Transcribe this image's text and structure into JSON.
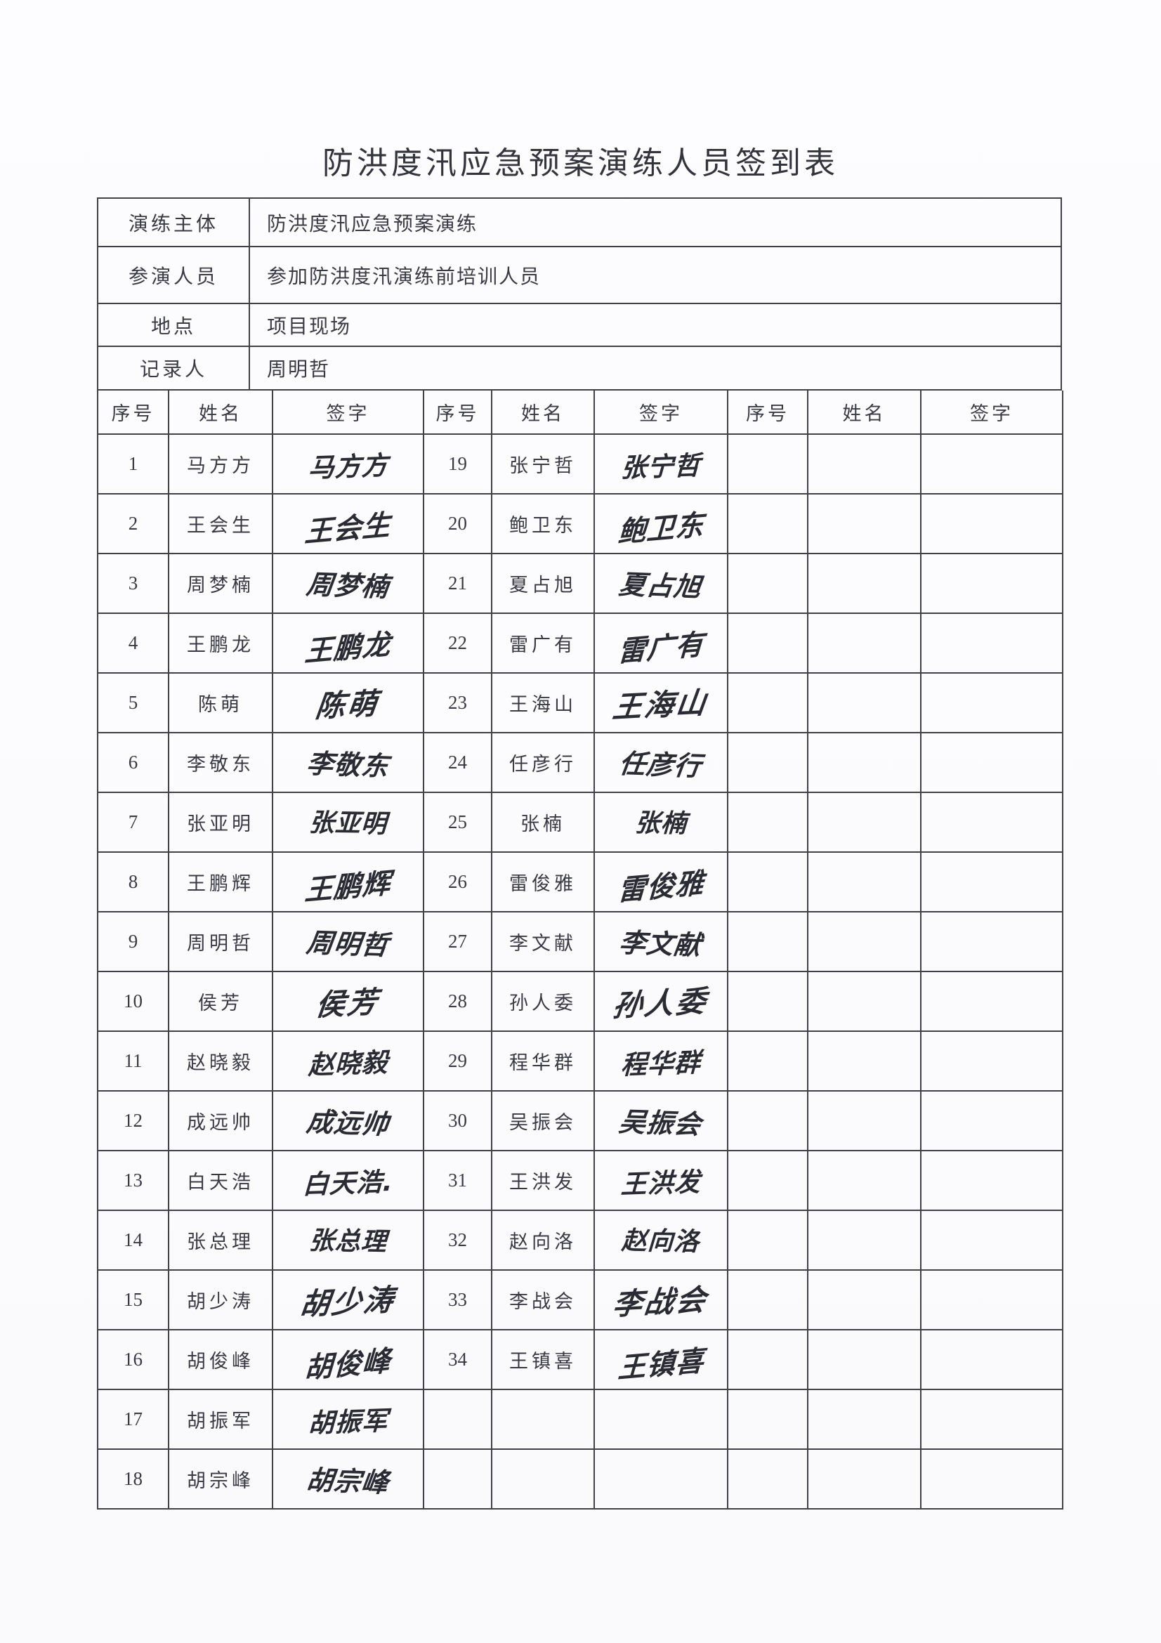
{
  "title": "防洪度汛应急预案演练人员签到表",
  "info_rows": [
    {
      "label": "演练主体",
      "value": "防洪度汛应急预案演练"
    },
    {
      "label": "参演人员",
      "value": "参加防洪度汛演练前培训人员"
    },
    {
      "label": "地点",
      "value": "项目现场"
    },
    {
      "label": "记录人",
      "value": "周明哲"
    }
  ],
  "column_headers": [
    "序号",
    "姓名",
    "签字"
  ],
  "ink_color": "#2b2b33",
  "line_color": "#404046",
  "groups": [
    {
      "rows": [
        {
          "no": "1",
          "name": "马方方",
          "signature": "马方方"
        },
        {
          "no": "2",
          "name": "王会生",
          "signature": "王会生"
        },
        {
          "no": "3",
          "name": "周梦楠",
          "signature": "周梦楠"
        },
        {
          "no": "4",
          "name": "王鹏龙",
          "signature": "王鹏龙"
        },
        {
          "no": "5",
          "name": "陈萌",
          "signature": "陈萌"
        },
        {
          "no": "6",
          "name": "李敬东",
          "signature": "李敬东"
        },
        {
          "no": "7",
          "name": "张亚明",
          "signature": "张亚明"
        },
        {
          "no": "8",
          "name": "王鹏辉",
          "signature": "王鹏辉"
        },
        {
          "no": "9",
          "name": "周明哲",
          "signature": "周明哲"
        },
        {
          "no": "10",
          "name": "侯芳",
          "signature": "侯芳"
        },
        {
          "no": "11",
          "name": "赵晓毅",
          "signature": "赵晓毅"
        },
        {
          "no": "12",
          "name": "成远帅",
          "signature": "成远帅"
        },
        {
          "no": "13",
          "name": "白天浩",
          "signature": "白天浩."
        },
        {
          "no": "14",
          "name": "张总理",
          "signature": "张总理"
        },
        {
          "no": "15",
          "name": "胡少涛",
          "signature": "胡少涛"
        },
        {
          "no": "16",
          "name": "胡俊峰",
          "signature": "胡俊峰"
        },
        {
          "no": "17",
          "name": "胡振军",
          "signature": "胡振军"
        },
        {
          "no": "18",
          "name": "胡宗峰",
          "signature": "胡宗峰"
        }
      ]
    },
    {
      "rows": [
        {
          "no": "19",
          "name": "张宁哲",
          "signature": "张宁哲"
        },
        {
          "no": "20",
          "name": "鲍卫东",
          "signature": "鲍卫东"
        },
        {
          "no": "21",
          "name": "夏占旭",
          "signature": "夏占旭"
        },
        {
          "no": "22",
          "name": "雷广有",
          "signature": "雷广有"
        },
        {
          "no": "23",
          "name": "王海山",
          "signature": "王海山"
        },
        {
          "no": "24",
          "name": "任彦行",
          "signature": "任彦行"
        },
        {
          "no": "25",
          "name": "张楠",
          "signature": "张楠"
        },
        {
          "no": "26",
          "name": "雷俊雅",
          "signature": "雷俊雅"
        },
        {
          "no": "27",
          "name": "李文献",
          "signature": "李文献"
        },
        {
          "no": "28",
          "name": "孙人委",
          "signature": "孙人委"
        },
        {
          "no": "29",
          "name": "程华群",
          "signature": "程华群"
        },
        {
          "no": "30",
          "name": "吴振会",
          "signature": "吴振会"
        },
        {
          "no": "31",
          "name": "王洪发",
          "signature": "王洪发"
        },
        {
          "no": "32",
          "name": "赵向洛",
          "signature": "赵向洛"
        },
        {
          "no": "33",
          "name": "李战会",
          "signature": "李战会"
        },
        {
          "no": "34",
          "name": "王镇喜",
          "signature": "王镇喜"
        },
        {
          "no": "",
          "name": "",
          "signature": ""
        },
        {
          "no": "",
          "name": "",
          "signature": ""
        }
      ]
    },
    {
      "rows": [
        {
          "no": "",
          "name": "",
          "signature": ""
        },
        {
          "no": "",
          "name": "",
          "signature": ""
        },
        {
          "no": "",
          "name": "",
          "signature": ""
        },
        {
          "no": "",
          "name": "",
          "signature": ""
        },
        {
          "no": "",
          "name": "",
          "signature": ""
        },
        {
          "no": "",
          "name": "",
          "signature": ""
        },
        {
          "no": "",
          "name": "",
          "signature": ""
        },
        {
          "no": "",
          "name": "",
          "signature": ""
        },
        {
          "no": "",
          "name": "",
          "signature": ""
        },
        {
          "no": "",
          "name": "",
          "signature": ""
        },
        {
          "no": "",
          "name": "",
          "signature": ""
        },
        {
          "no": "",
          "name": "",
          "signature": ""
        },
        {
          "no": "",
          "name": "",
          "signature": ""
        },
        {
          "no": "",
          "name": "",
          "signature": ""
        },
        {
          "no": "",
          "name": "",
          "signature": ""
        },
        {
          "no": "",
          "name": "",
          "signature": ""
        },
        {
          "no": "",
          "name": "",
          "signature": ""
        },
        {
          "no": "",
          "name": "",
          "signature": ""
        }
      ]
    }
  ]
}
